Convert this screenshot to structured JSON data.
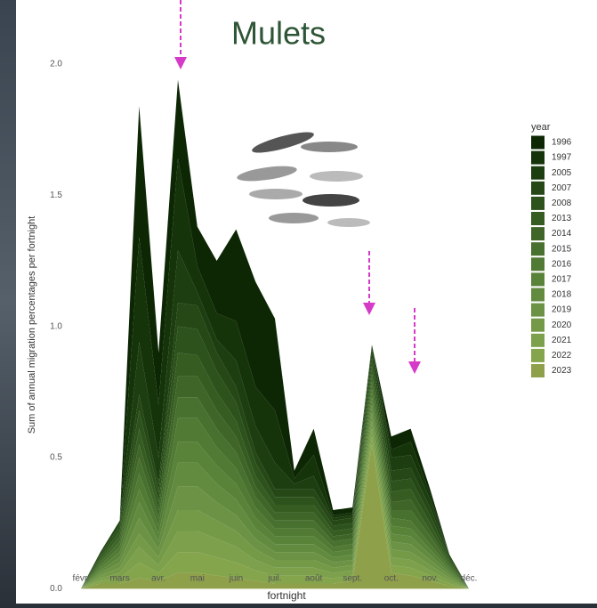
{
  "chart_data": {
    "type": "stacked_area",
    "title": "Mulets",
    "x_label": "fortnight",
    "y_label": "Sum of annual migration percentages per fortnight",
    "legend_title": "year",
    "categories": [
      "févr.",
      null,
      "mars",
      null,
      "avr.",
      null,
      "mai",
      null,
      "juin",
      null,
      "juil.",
      null,
      "août",
      null,
      "sept.",
      null,
      "oct.",
      null,
      "nov.",
      null,
      "déc.",
      null
    ],
    "ylim": [
      -0.07,
      2.2
    ],
    "yticks": [
      {
        "value": 0,
        "label": "0.0"
      },
      0.5,
      {
        "value": 1,
        "label": "1.0"
      },
      1.5,
      {
        "value": 2,
        "label": "2.0"
      }
    ],
    "series": [
      {
        "name": "1996",
        "color": "#0d2705",
        "values": [
          0,
          0,
          0,
          0.5,
          0.2,
          0.3,
          0.15,
          0.2,
          0.35,
          0.4,
          0.35,
          0.03,
          0.1,
          0.02,
          0.02,
          0,
          0.05,
          0.05,
          0.02,
          0,
          0,
          0
        ]
      },
      {
        "name": "1997",
        "color": "#15340a",
        "values": [
          0,
          0,
          0,
          0.4,
          0.2,
          0.35,
          0.1,
          0.1,
          0.15,
          0.15,
          0.2,
          0.02,
          0.08,
          0.01,
          0.01,
          0,
          0.03,
          0.05,
          0.02,
          0,
          0,
          0
        ]
      },
      {
        "name": "2005",
        "color": "#1d3e10",
        "values": [
          0,
          0,
          0,
          0.2,
          0.1,
          0.2,
          0.05,
          0.05,
          0.1,
          0.1,
          0.1,
          0.02,
          0.05,
          0.01,
          0.01,
          0.02,
          0.05,
          0.05,
          0.03,
          0,
          0,
          0
        ]
      },
      {
        "name": "2007",
        "color": "#254816",
        "values": [
          0,
          0.01,
          0.02,
          0.06,
          0.03,
          0.09,
          0.09,
          0.07,
          0.06,
          0.04,
          0.03,
          0.03,
          0.03,
          0.02,
          0.02,
          0.03,
          0.04,
          0.04,
          0.03,
          0.01,
          0,
          0
        ]
      },
      {
        "name": "2008",
        "color": "#2d521c",
        "values": [
          0,
          0.01,
          0.02,
          0.07,
          0.04,
          0.1,
          0.1,
          0.08,
          0.07,
          0.05,
          0.03,
          0.03,
          0.03,
          0.02,
          0.02,
          0.03,
          0.04,
          0.04,
          0.03,
          0.01,
          0,
          0
        ]
      },
      {
        "name": "2013",
        "color": "#365c22",
        "values": [
          0,
          0.01,
          0.02,
          0.06,
          0.03,
          0.09,
          0.08,
          0.07,
          0.06,
          0.04,
          0.03,
          0.03,
          0.03,
          0.02,
          0.02,
          0.03,
          0.04,
          0.04,
          0.03,
          0.01,
          0,
          0
        ]
      },
      {
        "name": "2014",
        "color": "#3f6628",
        "values": [
          0,
          0.01,
          0.02,
          0.05,
          0.03,
          0.08,
          0.08,
          0.07,
          0.06,
          0.04,
          0.03,
          0.03,
          0.03,
          0.02,
          0.02,
          0.03,
          0.03,
          0.04,
          0.02,
          0.01,
          0,
          0
        ]
      },
      {
        "name": "2015",
        "color": "#48702e",
        "values": [
          0,
          0.01,
          0.02,
          0.06,
          0.03,
          0.08,
          0.08,
          0.07,
          0.06,
          0.04,
          0.03,
          0.03,
          0.03,
          0.02,
          0.02,
          0.03,
          0.03,
          0.04,
          0.03,
          0.01,
          0,
          0
        ]
      },
      {
        "name": "2016",
        "color": "#517a34",
        "values": [
          0,
          0.01,
          0.02,
          0.06,
          0.03,
          0.09,
          0.09,
          0.07,
          0.06,
          0.04,
          0.03,
          0.03,
          0.03,
          0.02,
          0.02,
          0.03,
          0.03,
          0.03,
          0.02,
          0.01,
          0,
          0
        ]
      },
      {
        "name": "2017",
        "color": "#5a833a",
        "values": [
          0,
          0.01,
          0.02,
          0.05,
          0.03,
          0.08,
          0.08,
          0.07,
          0.06,
          0.04,
          0.03,
          0.03,
          0.03,
          0.02,
          0.02,
          0.03,
          0.03,
          0.03,
          0.02,
          0.01,
          0,
          0
        ]
      },
      {
        "name": "2018",
        "color": "#638b40",
        "values": [
          0,
          0.01,
          0.02,
          0.06,
          0.03,
          0.09,
          0.09,
          0.07,
          0.06,
          0.04,
          0.03,
          0.03,
          0.03,
          0.02,
          0.02,
          0.03,
          0.03,
          0.03,
          0.02,
          0.01,
          0,
          0
        ]
      },
      {
        "name": "2019",
        "color": "#6c9345",
        "values": [
          0,
          0.01,
          0.02,
          0.06,
          0.03,
          0.09,
          0.09,
          0.07,
          0.06,
          0.04,
          0.03,
          0.03,
          0.03,
          0.02,
          0.02,
          0.03,
          0.03,
          0.03,
          0.02,
          0.01,
          0,
          0
        ]
      },
      {
        "name": "2020",
        "color": "#749a48",
        "values": [
          0,
          0.01,
          0.02,
          0.05,
          0.03,
          0.08,
          0.08,
          0.07,
          0.06,
          0.04,
          0.03,
          0.03,
          0.03,
          0.02,
          0.02,
          0.03,
          0.03,
          0.03,
          0.02,
          0.01,
          0,
          0
        ]
      },
      {
        "name": "2021",
        "color": "#7ca04b",
        "values": [
          0,
          0.01,
          0.02,
          0.06,
          0.03,
          0.08,
          0.08,
          0.07,
          0.06,
          0.04,
          0.03,
          0.03,
          0.03,
          0.02,
          0.02,
          0.03,
          0.03,
          0.03,
          0.02,
          0.01,
          0,
          0
        ]
      },
      {
        "name": "2022",
        "color": "#85a54d",
        "values": [
          0,
          0.01,
          0.02,
          0.06,
          0.03,
          0.08,
          0.08,
          0.07,
          0.06,
          0.04,
          0.03,
          0.03,
          0.03,
          0.02,
          0.02,
          0.03,
          0.03,
          0.03,
          0.02,
          0.01,
          0,
          0
        ]
      },
      {
        "name": "2023",
        "color": "#8fa04a",
        "values": [
          0,
          0.02,
          0.02,
          0.04,
          0.03,
          0.06,
          0.06,
          0.05,
          0.04,
          0.03,
          0.02,
          0.02,
          0.02,
          0.02,
          0.03,
          0.55,
          0.06,
          0.05,
          0.03,
          0.01,
          0,
          0
        ]
      }
    ]
  }
}
